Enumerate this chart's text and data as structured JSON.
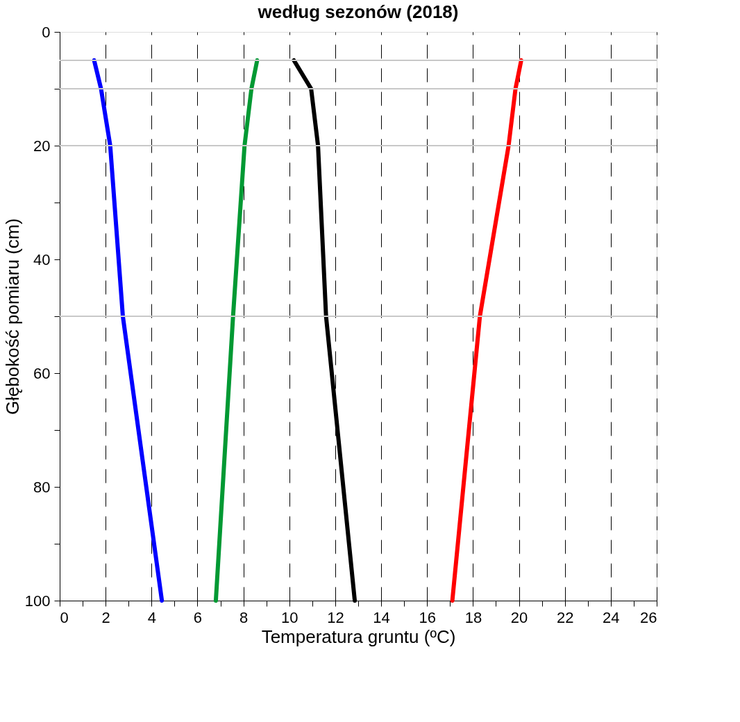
{
  "chart_data": {
    "type": "line",
    "title": "według sezonów (2018)",
    "xlabel": "Temperatura gruntu (ºC)",
    "ylabel": "Głębokość pomiaru (cm)",
    "series": [
      {
        "color": "#0000ff",
        "x": [
          1.5,
          1.8,
          2.2,
          2.75,
          4.45
        ],
        "values": [
          5,
          10,
          20,
          50,
          100
        ]
      },
      {
        "color": "#009933",
        "x": [
          8.6,
          8.35,
          8.05,
          7.55,
          6.8
        ],
        "values": [
          5,
          10,
          20,
          50,
          100
        ]
      },
      {
        "color": "#000000",
        "x": [
          10.2,
          10.95,
          11.25,
          11.6,
          12.85
        ],
        "values": [
          5,
          10,
          20,
          50,
          100
        ]
      },
      {
        "color": "#ff0000",
        "x": [
          20.1,
          19.85,
          19.55,
          18.3,
          17.1
        ],
        "values": [
          5,
          10,
          20,
          50,
          100
        ]
      }
    ],
    "xlim": [
      0,
      26
    ],
    "ylim": [
      100,
      0
    ],
    "xticks": [
      0,
      {
        "value": 1,
        "label": null
      },
      2,
      {
        "value": 3,
        "label": null
      },
      4,
      {
        "value": 5,
        "label": null
      },
      6,
      {
        "value": 7,
        "label": null
      },
      8,
      {
        "value": 9,
        "label": null
      },
      10,
      {
        "value": 11,
        "label": null
      },
      12,
      {
        "value": 13,
        "label": null
      },
      14,
      {
        "value": 15,
        "label": null
      },
      16,
      {
        "value": 17,
        "label": null
      },
      18,
      {
        "value": 19,
        "label": null
      },
      20,
      {
        "value": 21,
        "label": null
      },
      22,
      {
        "value": 23,
        "label": null
      },
      24,
      {
        "value": 25,
        "label": null
      },
      26
    ],
    "yticks": [
      0,
      {
        "value": 10,
        "label": null
      },
      20,
      {
        "value": 30,
        "label": null
      },
      40,
      {
        "value": 50,
        "label": null
      },
      60,
      {
        "value": 70,
        "label": null
      },
      80,
      {
        "value": 90,
        "label": null
      },
      100
    ],
    "grid": "x",
    "line_style": "solid",
    "marker": "none",
    "legend": false,
    "ref_lines": [
      {
        "axis": "y",
        "value": 5,
        "color": "#c8c8c8"
      },
      {
        "axis": "y",
        "value": 10,
        "color": "#c8c8c8"
      },
      {
        "axis": "y",
        "value": 20,
        "color": "#c8c8c8"
      },
      {
        "axis": "y",
        "value": 50,
        "color": "#c8c8c8"
      }
    ]
  }
}
